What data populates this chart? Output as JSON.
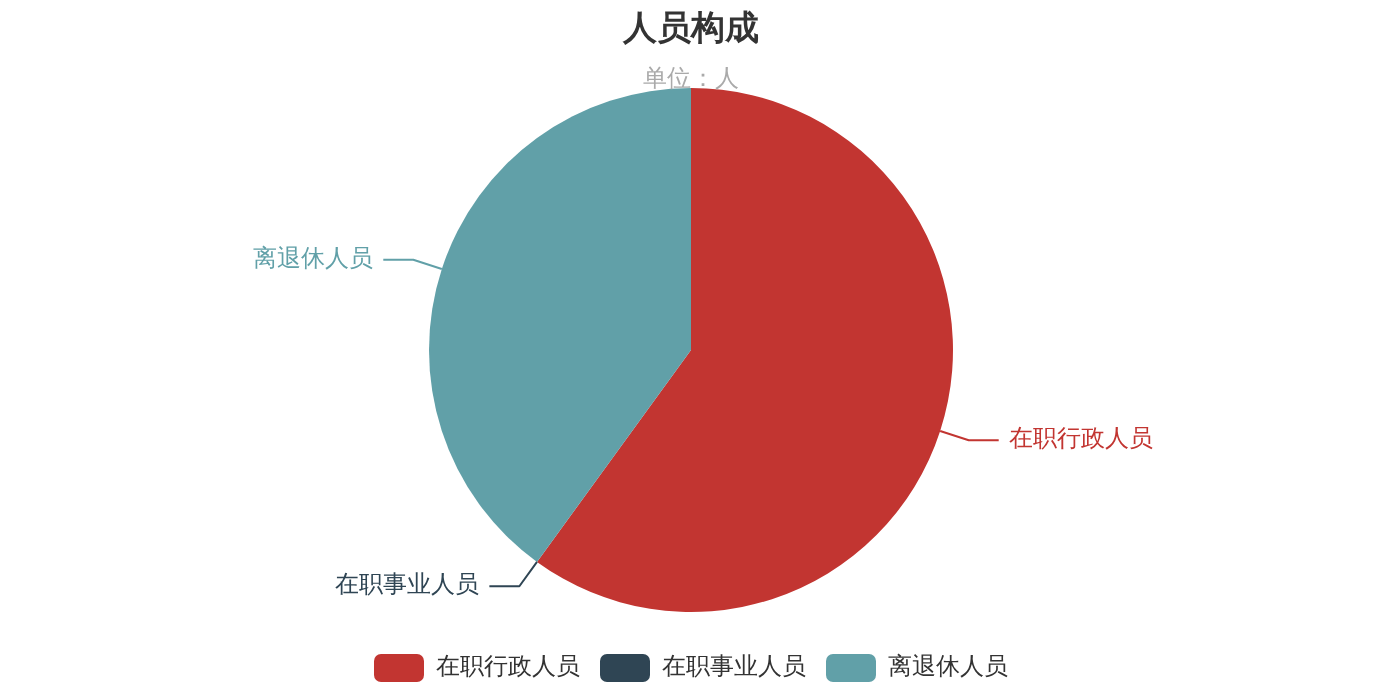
{
  "chart_data": {
    "type": "pie",
    "title": "人员构成",
    "subtitle": "单位：人",
    "categories": [
      "在职行政人员",
      "在职事业人员",
      "离退休人员"
    ],
    "values": [
      60,
      0,
      40
    ],
    "colors": [
      "#c23531",
      "#2f4554",
      "#61a0a8"
    ],
    "legend": "bottom"
  }
}
